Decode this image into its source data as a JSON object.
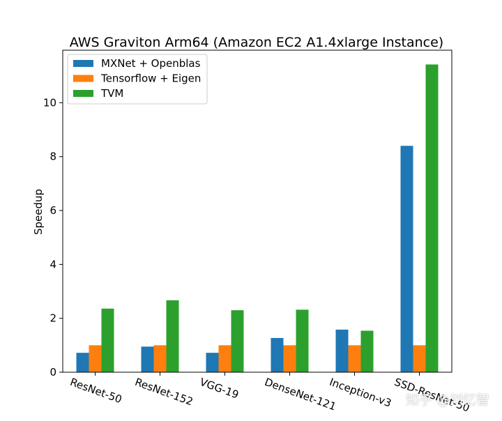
{
  "colors": {
    "mxnet": "#1f77b4",
    "tensorflow": "#ff7f0e",
    "tvm": "#2ca02c"
  },
  "chart_data": {
    "type": "bar",
    "title": "AWS Graviton Arm64 (Amazon EC2 A1.4xlarge Instance)",
    "xlabel": "",
    "ylabel": "Speedup",
    "categories": [
      "ResNet-50",
      "ResNet-152",
      "VGG-19",
      "DenseNet-121",
      "Inception-v3",
      "SSD-ResNet-50"
    ],
    "series": [
      {
        "name": "MXNet + Openblas",
        "values": [
          0.72,
          0.95,
          0.72,
          1.27,
          1.58,
          8.4
        ]
      },
      {
        "name": "Tensorflow + Eigen",
        "values": [
          1.0,
          1.0,
          1.0,
          1.0,
          1.0,
          1.0
        ]
      },
      {
        "name": "TVM",
        "values": [
          2.36,
          2.67,
          2.3,
          2.32,
          1.54,
          11.42
        ]
      }
    ],
    "ylim": [
      0,
      11.95
    ],
    "yticks": [
      0,
      2,
      4,
      6,
      8,
      10
    ],
    "grid": false,
    "legend_position": "upper-left"
  },
  "watermark": "知乎 @刘忆智"
}
